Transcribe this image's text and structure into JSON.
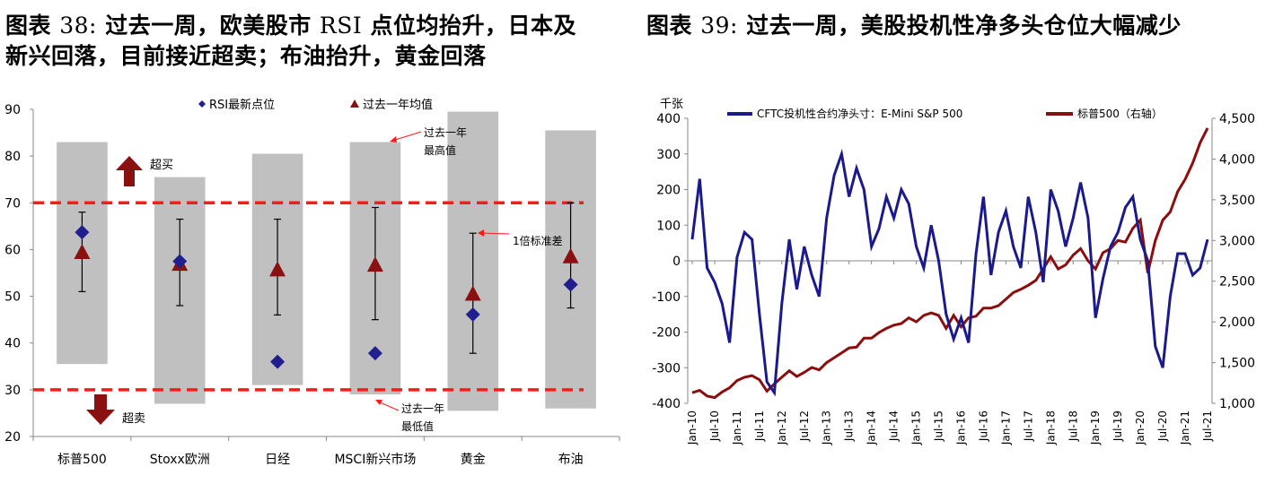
{
  "left_title": {
    "line1_prefix": "图表",
    "line1_num": "38:",
    "line1_mid": "过去一周，欧美股市",
    "line1_rsi": "RSI",
    "line1_end": "点位均抬升，日本及",
    "line2": "新兴回落，目前接近超卖；布油抬升，黄金回落"
  },
  "right_title": {
    "prefix": "图表",
    "num": "39:",
    "text": "过去一周，美股投机性净多头仓位大幅减少"
  },
  "colors": {
    "diamond": "#1f1f8f",
    "triangle": "#8b1010",
    "band": "#c0c0c0",
    "threshold": "#ff1a1a",
    "cftc_line": "#1a1a8c",
    "sp_line": "#8b0d0d"
  },
  "chart_data": [
    {
      "type": "range-marker",
      "categories": [
        "标普500",
        "Stoxx欧洲",
        "日经",
        "MSCI新兴市场",
        "黄金",
        "布油"
      ],
      "ylim": [
        20,
        90
      ],
      "yticks": [
        20,
        30,
        40,
        50,
        60,
        70,
        80,
        90
      ],
      "legend": [
        "RSI最新点位",
        "过去一年均值"
      ],
      "series": [
        {
          "name": "RSI最新点位",
          "marker": "diamond",
          "values": [
            63.7,
            57.5,
            36.0,
            37.8,
            46.1,
            52.5
          ]
        },
        {
          "name": "过去一年均值",
          "marker": "triangle",
          "values": [
            59.5,
            57.0,
            55.8,
            56.8,
            50.6,
            58.6
          ]
        }
      ],
      "year_max": [
        83.0,
        75.5,
        80.5,
        83.0,
        89.5,
        85.5
      ],
      "year_min": [
        35.5,
        27.0,
        31.0,
        29.0,
        25.5,
        26.0
      ],
      "std_upper": [
        68.0,
        66.5,
        66.5,
        69.0,
        63.5,
        70.0
      ],
      "std_lower": [
        51.0,
        48.0,
        46.0,
        45.0,
        37.8,
        47.5
      ],
      "thresholds": [
        70,
        30
      ],
      "annotations": {
        "year_high": "过去一年最高值",
        "std": "1倍标准差",
        "year_low": "过去一年最低值",
        "overbought": "超买",
        "oversold": "超卖"
      }
    },
    {
      "type": "line",
      "y_unit_label": "千张",
      "x_tick_labels": [
        "Jan-10",
        "Jul-10",
        "Jan-11",
        "Jul-11",
        "Jan-12",
        "Jul-12",
        "Jan-13",
        "Jul-13",
        "Jan-14",
        "Jul-14",
        "Jan-15",
        "Jul-15",
        "Jan-16",
        "Jul-16",
        "Jan-17",
        "Jul-17",
        "Jan-18",
        "Jul-18",
        "Jan-19",
        "Jul-19",
        "Jan-20",
        "Jul-20",
        "Jan-21",
        "Jul-21"
      ],
      "ylim_left": [
        -400,
        400
      ],
      "yticks_left": [
        -400,
        -300,
        -200,
        -100,
        0,
        100,
        200,
        300,
        400
      ],
      "ylim_right": [
        1000,
        4500
      ],
      "yticks_right": [
        "1,000",
        "1,500",
        "2,000",
        "2,500",
        "3,000",
        "3,500",
        "4,000",
        "4,500"
      ],
      "x": [
        "Jan-10",
        "Mar-10",
        "May-10",
        "Jul-10",
        "Sep-10",
        "Nov-10",
        "Jan-11",
        "Mar-11",
        "May-11",
        "Jul-11",
        "Sep-11",
        "Nov-11",
        "Jan-12",
        "Mar-12",
        "May-12",
        "Jul-12",
        "Sep-12",
        "Nov-12",
        "Jan-13",
        "Mar-13",
        "May-13",
        "Jul-13",
        "Sep-13",
        "Nov-13",
        "Jan-14",
        "Mar-14",
        "May-14",
        "Jul-14",
        "Sep-14",
        "Nov-14",
        "Jan-15",
        "Mar-15",
        "May-15",
        "Jul-15",
        "Sep-15",
        "Nov-15",
        "Jan-16",
        "Mar-16",
        "May-16",
        "Jul-16",
        "Sep-16",
        "Nov-16",
        "Jan-17",
        "Mar-17",
        "May-17",
        "Jul-17",
        "Sep-17",
        "Nov-17",
        "Jan-18",
        "Mar-18",
        "May-18",
        "Jul-18",
        "Sep-18",
        "Nov-18",
        "Jan-19",
        "Mar-19",
        "May-19",
        "Jul-19",
        "Sep-19",
        "Nov-19",
        "Jan-20",
        "Mar-20",
        "May-20",
        "Jul-20",
        "Sep-20",
        "Nov-20",
        "Jan-21",
        "Mar-21",
        "May-21",
        "Jul-21"
      ],
      "series": [
        {
          "name": "CFTC投机性合约净头寸：E-Mini S&P 500",
          "axis": "left",
          "values": [
            60,
            230,
            -20,
            -60,
            -120,
            -230,
            10,
            80,
            60,
            -150,
            -340,
            -370,
            -120,
            60,
            -80,
            40,
            -40,
            -100,
            120,
            240,
            300,
            180,
            260,
            200,
            40,
            90,
            180,
            120,
            200,
            160,
            40,
            -20,
            100,
            0,
            -150,
            -220,
            -160,
            -230,
            20,
            180,
            -40,
            80,
            140,
            40,
            -20,
            180,
            80,
            -60,
            200,
            140,
            40,
            120,
            220,
            120,
            -160,
            -50,
            40,
            80,
            150,
            180,
            60,
            0,
            -240,
            -300,
            -100,
            20,
            20,
            -40,
            -20,
            60
          ]
        },
        {
          "name": "标普500（右轴）",
          "axis": "right",
          "values": [
            1130,
            1160,
            1090,
            1070,
            1140,
            1190,
            1280,
            1320,
            1340,
            1290,
            1150,
            1240,
            1320,
            1400,
            1330,
            1380,
            1440,
            1410,
            1500,
            1560,
            1620,
            1680,
            1690,
            1800,
            1800,
            1870,
            1920,
            1960,
            1980,
            2050,
            2000,
            2080,
            2110,
            2080,
            1920,
            2080,
            1940,
            2050,
            2070,
            2170,
            2170,
            2200,
            2280,
            2360,
            2400,
            2450,
            2510,
            2650,
            2800,
            2650,
            2700,
            2820,
            2900,
            2750,
            2650,
            2850,
            2900,
            3000,
            2980,
            3150,
            3250,
            2600,
            3000,
            3250,
            3350,
            3600,
            3750,
            3950,
            4200,
            4380
          ]
        }
      ]
    }
  ]
}
